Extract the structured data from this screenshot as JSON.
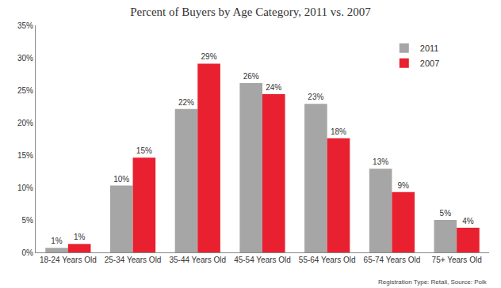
{
  "chart_data": {
    "type": "bar",
    "title": "Percent of Buyers by Age Category, 2011 vs. 2007",
    "annotations": [
      "Registration Type: Retail, Source: Polk"
    ],
    "categories": [
      "18-24 Years Old",
      "25-34 Years Old",
      "35-44 Years Old",
      "45-54 Years Old",
      "55-64 Years Old",
      "65-74 Years Old",
      "75+ Years Old"
    ],
    "series": [
      {
        "name": "2011",
        "color": "#a6a6a6",
        "values": [
          0.7,
          10.3,
          22.1,
          26.1,
          22.9,
          12.9,
          5.0
        ],
        "value_labels": [
          "1%",
          "10%",
          "22%",
          "26%",
          "23%",
          "13%",
          "5%"
        ]
      },
      {
        "name": "2007",
        "color": "#e8202f",
        "values": [
          1.3,
          14.6,
          29.1,
          24.4,
          17.6,
          9.3,
          3.8
        ],
        "value_labels": [
          "1%",
          "15%",
          "29%",
          "24%",
          "18%",
          "9%",
          "4%"
        ]
      }
    ],
    "ylim": [
      0,
      35
    ],
    "yticks": [
      {
        "value": 0,
        "label": "0%"
      },
      {
        "value": 5,
        "label": "5%"
      },
      {
        "value": 10,
        "label": "10%"
      },
      {
        "value": 15,
        "label": "15%"
      },
      {
        "value": 20,
        "label": "20%"
      },
      {
        "value": 25,
        "label": "25%"
      },
      {
        "value": 30,
        "label": "30%"
      },
      {
        "value": 35,
        "label": "35%"
      }
    ],
    "grid": false,
    "legend": "top right",
    "data_labels": true
  }
}
